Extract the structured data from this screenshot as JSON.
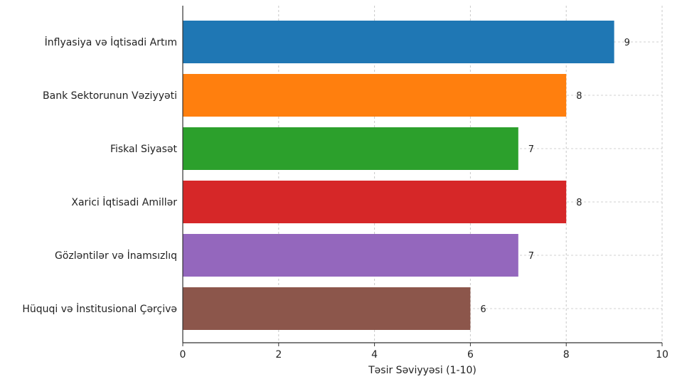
{
  "chart_data": {
    "type": "bar",
    "orientation": "horizontal",
    "categories": [
      "İnflyasiya və İqtisadi Artım",
      "Bank Sektorunun Vəziyyəti",
      "Fiskal Siyasət",
      "Xarici İqtisadi Amillər",
      "Gözləntilər və İnamsızlıq",
      "Hüquqi və İnstitusional Çərçivə"
    ],
    "values": [
      9,
      8,
      7,
      8,
      7,
      6
    ],
    "value_labels": [
      "9",
      "8",
      "7",
      "8",
      "7",
      "6"
    ],
    "colors": [
      "#1f77b4",
      "#ff7f0e",
      "#2ca02c",
      "#d62728",
      "#9467bd",
      "#8c564b"
    ],
    "xlabel": "Təsir Səviyyəsi (1-10)",
    "ylabel": "",
    "xlim": [
      0,
      10
    ],
    "xticks": [
      "0",
      "2",
      "4",
      "6",
      "8",
      "10"
    ],
    "grid": true
  }
}
